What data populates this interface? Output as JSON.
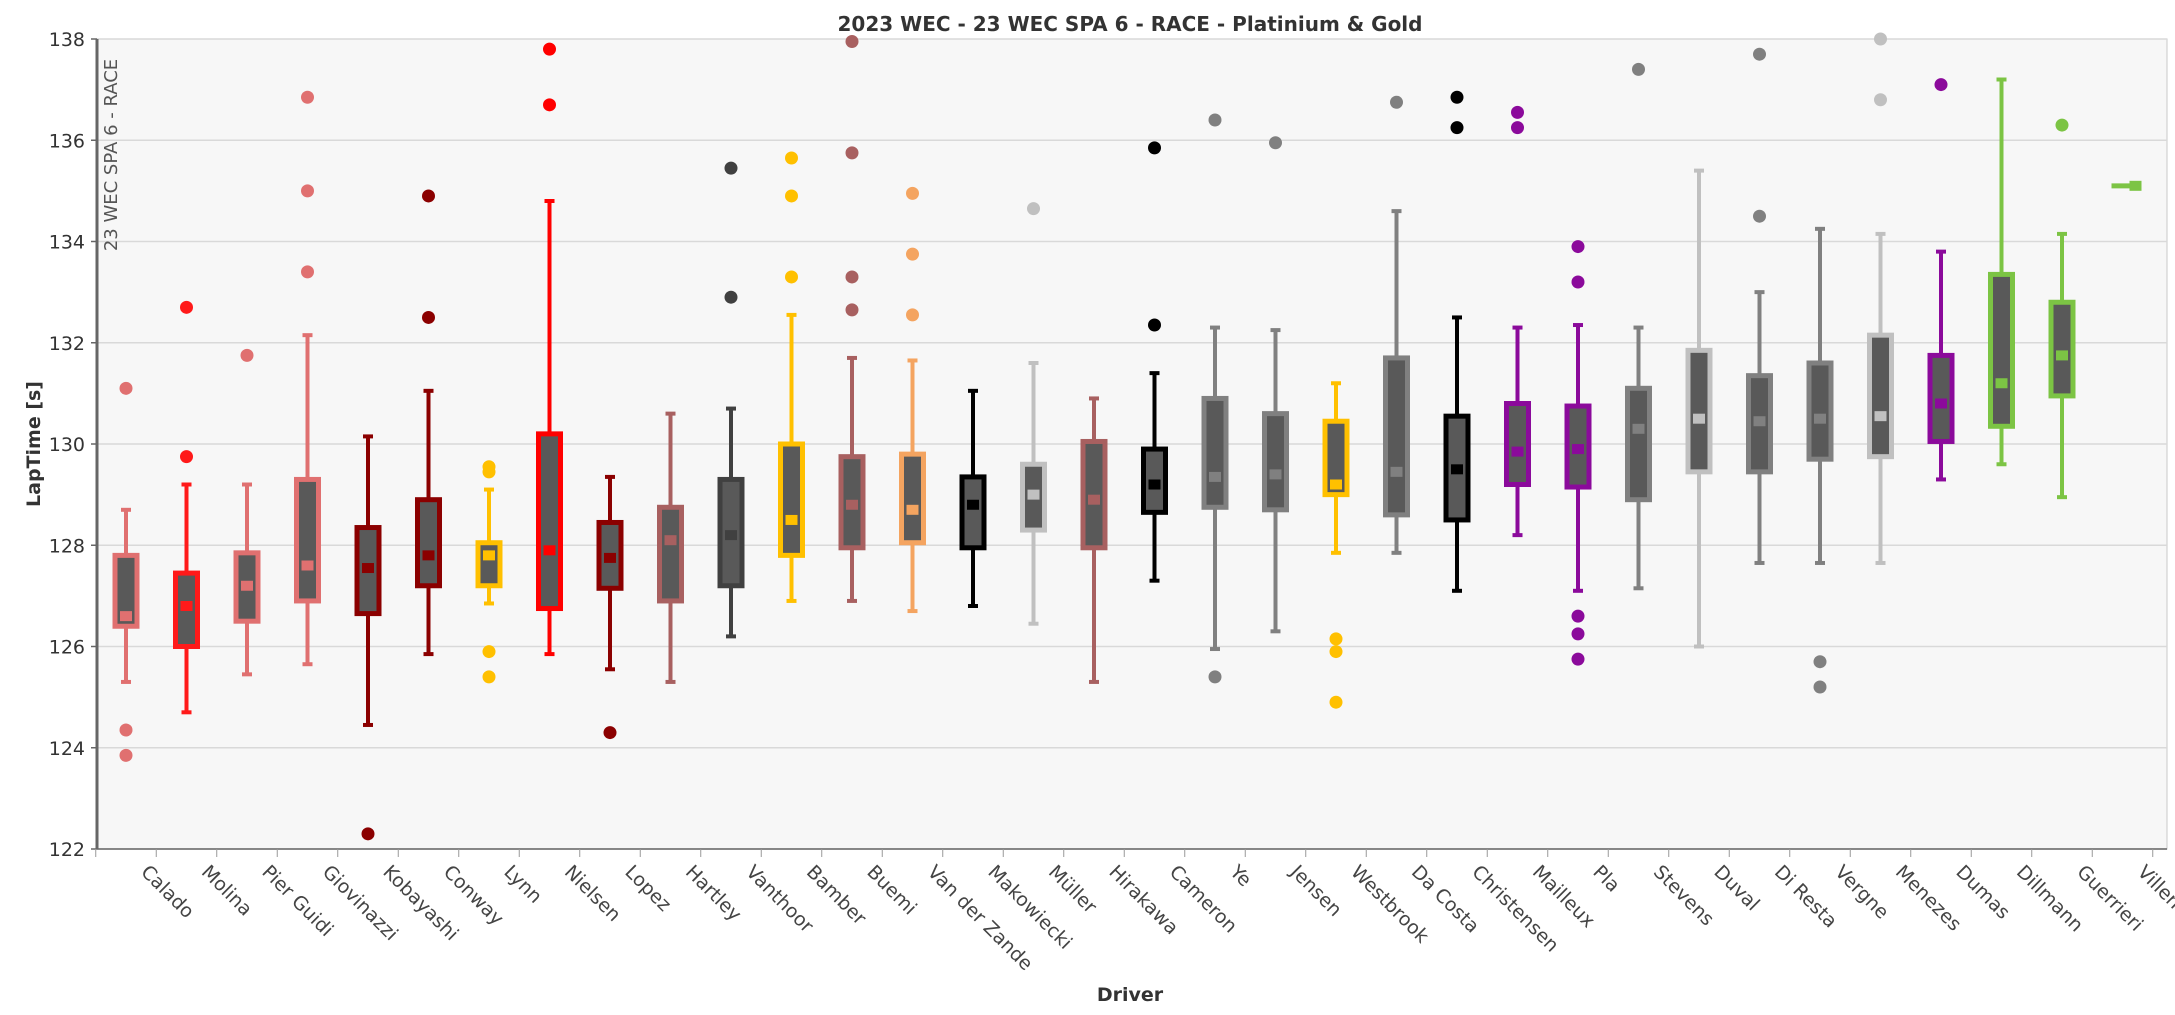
{
  "chart_data": {
    "type": "boxplot",
    "title": "2023 WEC - 23 WEC SPA 6 - RACE - Platinium & Gold",
    "side_label": "23 WEC SPA 6 - RACE",
    "xlabel": "Driver",
    "ylabel": "LapTime [s]",
    "ylim": [
      122,
      138
    ],
    "yticks": [
      122,
      124,
      126,
      128,
      130,
      132,
      134,
      136,
      138
    ],
    "grid": true,
    "inner_color": "#595959",
    "series": [
      {
        "name": "Calado",
        "color": "#e07070",
        "min": 125.3,
        "q1": 126.4,
        "median": 126.6,
        "q3": 127.8,
        "max": 128.7,
        "outliers": [
          124.35,
          123.85,
          131.1
        ]
      },
      {
        "name": "Molina",
        "color": "#ff1a1a",
        "min": 124.7,
        "q1": 126.0,
        "median": 126.8,
        "q3": 127.45,
        "max": 129.2,
        "outliers": [
          129.75,
          132.7
        ]
      },
      {
        "name": "Pier Guidi",
        "color": "#e07070",
        "min": 125.45,
        "q1": 126.5,
        "median": 127.2,
        "q3": 127.85,
        "max": 129.2,
        "outliers": [
          131.75
        ]
      },
      {
        "name": "Giovinazzi",
        "color": "#e07070",
        "min": 125.65,
        "q1": 126.9,
        "median": 127.6,
        "q3": 129.3,
        "max": 132.15,
        "outliers": [
          133.4,
          135.0,
          136.85
        ]
      },
      {
        "name": "Kobayashi",
        "color": "#8b0000",
        "min": 124.45,
        "q1": 126.65,
        "median": 127.55,
        "q3": 128.35,
        "max": 130.15,
        "outliers": [
          122.3
        ]
      },
      {
        "name": "Conway",
        "color": "#8b0000",
        "min": 125.85,
        "q1": 127.2,
        "median": 127.8,
        "q3": 128.9,
        "max": 131.05,
        "outliers": [
          132.5,
          134.9
        ]
      },
      {
        "name": "Lynn",
        "color": "#ffc000",
        "min": 126.85,
        "q1": 127.2,
        "median": 127.8,
        "q3": 128.05,
        "max": 129.1,
        "outliers": [
          125.4,
          125.9,
          129.45,
          129.55
        ]
      },
      {
        "name": "Nielsen",
        "color": "#ff0000",
        "min": 125.85,
        "q1": 126.75,
        "median": 127.9,
        "q3": 130.2,
        "max": 134.8,
        "outliers": [
          136.7,
          137.8
        ]
      },
      {
        "name": "Lopez",
        "color": "#8b0000",
        "min": 125.55,
        "q1": 127.15,
        "median": 127.75,
        "q3": 128.45,
        "max": 129.35,
        "outliers": [
          124.3
        ]
      },
      {
        "name": "Hartley",
        "color": "#a86060",
        "min": 125.3,
        "q1": 126.9,
        "median": 128.1,
        "q3": 128.75,
        "max": 130.6,
        "outliers": []
      },
      {
        "name": "Vanthoor",
        "color": "#404040",
        "min": 126.2,
        "q1": 127.2,
        "median": 128.2,
        "q3": 129.3,
        "max": 130.7,
        "outliers": [
          132.9,
          135.45
        ]
      },
      {
        "name": "Bamber",
        "color": "#ffc000",
        "min": 126.9,
        "q1": 127.8,
        "median": 128.5,
        "q3": 130.0,
        "max": 132.55,
        "outliers": [
          133.3,
          134.9,
          135.65
        ]
      },
      {
        "name": "Buemi",
        "color": "#a86060",
        "min": 126.9,
        "q1": 127.95,
        "median": 128.8,
        "q3": 129.75,
        "max": 131.7,
        "outliers": [
          132.65,
          133.3,
          135.75,
          137.95
        ]
      },
      {
        "name": "Van der Zande",
        "color": "#f4a460",
        "min": 126.7,
        "q1": 128.05,
        "median": 128.7,
        "q3": 129.8,
        "max": 131.65,
        "outliers": [
          132.55,
          133.75,
          134.95
        ]
      },
      {
        "name": "Makowiecki",
        "color": "#000000",
        "min": 126.8,
        "q1": 127.95,
        "median": 128.8,
        "q3": 129.35,
        "max": 131.05,
        "outliers": []
      },
      {
        "name": "Müller",
        "color": "#c0c0c0",
        "min": 126.45,
        "q1": 128.3,
        "median": 129.0,
        "q3": 129.6,
        "max": 131.6,
        "outliers": [
          134.65
        ]
      },
      {
        "name": "Hirakawa",
        "color": "#a86060",
        "min": 125.3,
        "q1": 127.95,
        "median": 128.9,
        "q3": 130.05,
        "max": 130.9,
        "outliers": []
      },
      {
        "name": "Cameron",
        "color": "#000000",
        "min": 127.3,
        "q1": 128.65,
        "median": 129.2,
        "q3": 129.9,
        "max": 131.4,
        "outliers": [
          132.35,
          135.85
        ]
      },
      {
        "name": "Ye",
        "color": "#808080",
        "min": 125.95,
        "q1": 128.75,
        "median": 129.35,
        "q3": 130.9,
        "max": 132.3,
        "outliers": [
          125.4,
          136.4
        ]
      },
      {
        "name": "Jensen",
        "color": "#808080",
        "min": 126.3,
        "q1": 128.7,
        "median": 129.4,
        "q3": 130.6,
        "max": 132.25,
        "outliers": [
          135.95
        ]
      },
      {
        "name": "Westbrook",
        "color": "#ffc000",
        "min": 127.85,
        "q1": 129.0,
        "median": 129.2,
        "q3": 130.45,
        "max": 131.2,
        "outliers": [
          124.9,
          125.9,
          126.15
        ]
      },
      {
        "name": "Da Costa",
        "color": "#808080",
        "min": 127.85,
        "q1": 128.6,
        "median": 129.45,
        "q3": 131.7,
        "max": 134.6,
        "outliers": [
          136.75
        ]
      },
      {
        "name": "Christensen",
        "color": "#000000",
        "min": 127.1,
        "q1": 128.5,
        "median": 129.5,
        "q3": 130.55,
        "max": 132.5,
        "outliers": [
          136.25,
          136.85
        ]
      },
      {
        "name": "Mailleux",
        "color": "#8b0a9b",
        "min": 128.2,
        "q1": 129.2,
        "median": 129.85,
        "q3": 130.8,
        "max": 132.3,
        "outliers": [
          136.25,
          136.55
        ]
      },
      {
        "name": "Pla",
        "color": "#8b0a9b",
        "min": 127.1,
        "q1": 129.15,
        "median": 129.9,
        "q3": 130.75,
        "max": 132.35,
        "outliers": [
          125.75,
          126.25,
          126.6,
          133.2,
          133.9
        ]
      },
      {
        "name": "Stevens",
        "color": "#808080",
        "min": 127.15,
        "q1": 128.9,
        "median": 130.3,
        "q3": 131.1,
        "max": 132.3,
        "outliers": [
          137.4
        ]
      },
      {
        "name": "Duval",
        "color": "#c0c0c0",
        "min": 126.0,
        "q1": 129.45,
        "median": 130.5,
        "q3": 131.85,
        "max": 135.4,
        "outliers": []
      },
      {
        "name": "Di Resta",
        "color": "#808080",
        "min": 127.65,
        "q1": 129.45,
        "median": 130.45,
        "q3": 131.35,
        "max": 133.0,
        "outliers": [
          134.5,
          137.7
        ]
      },
      {
        "name": "Vergne",
        "color": "#808080",
        "min": 127.65,
        "q1": 129.7,
        "median": 130.5,
        "q3": 131.6,
        "max": 134.25,
        "outliers": [
          125.2,
          125.7
        ]
      },
      {
        "name": "Menezes",
        "color": "#c0c0c0",
        "min": 127.65,
        "q1": 129.75,
        "median": 130.55,
        "q3": 132.15,
        "max": 134.15,
        "outliers": [
          136.8,
          138.0
        ]
      },
      {
        "name": "Dumas",
        "color": "#8b0a9b",
        "min": 129.3,
        "q1": 130.05,
        "median": 130.8,
        "q3": 131.75,
        "max": 133.8,
        "outliers": [
          137.1
        ]
      },
      {
        "name": "Dillmann",
        "color": "#7cc444",
        "min": 129.6,
        "q1": 130.35,
        "median": 131.2,
        "q3": 133.35,
        "max": 137.2,
        "outliers": []
      },
      {
        "name": "Guerrieri",
        "color": "#7cc444",
        "min": 128.95,
        "q1": 130.95,
        "median": 131.75,
        "q3": 132.8,
        "max": 134.15,
        "outliers": [
          136.3
        ]
      },
      {
        "name": "Villena",
        "color": "#7cc444",
        "min": 135.1,
        "q1": 135.1,
        "median": 135.1,
        "q3": 135.1,
        "max": 135.1,
        "outliers": []
      }
    ]
  }
}
